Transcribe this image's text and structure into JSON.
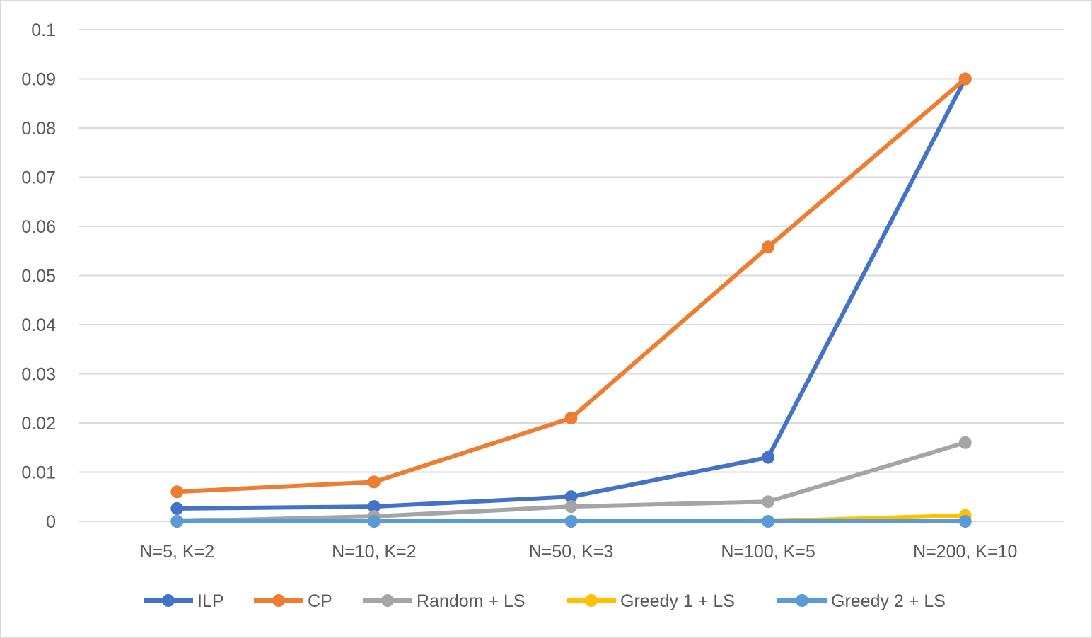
{
  "chart_data": {
    "type": "line",
    "title": "",
    "xlabel": "",
    "ylabel": "",
    "categories": [
      "N=5, K=2",
      "N=10, K=2",
      "N=50, K=3",
      "N=100, K=5",
      "N=200, K=10"
    ],
    "ylim": [
      0,
      0.1
    ],
    "yticks": [
      "0",
      "0.01",
      "0.02",
      "0.03",
      "0.04",
      "0.05",
      "0.06",
      "0.07",
      "0.08",
      "0.09",
      "0.1"
    ],
    "grid": true,
    "legend_position": "bottom",
    "series": [
      {
        "name": "ILP",
        "color": "#4472C4",
        "values": [
          0.0026,
          0.003,
          0.005,
          0.013,
          0.09
        ]
      },
      {
        "name": "CP",
        "color": "#ED7D31",
        "values": [
          0.006,
          0.008,
          0.021,
          0.0558,
          0.09
        ]
      },
      {
        "name": "Random + LS",
        "color": "#A5A5A5",
        "values": [
          0.0,
          0.001,
          0.003,
          0.004,
          0.016
        ]
      },
      {
        "name": "Greedy 1 + LS",
        "color": "#FFC000",
        "values": [
          0.0,
          0.0,
          0.0,
          0.0,
          0.0012
        ]
      },
      {
        "name": "Greedy 2 + LS",
        "color": "#5B9BD5",
        "values": [
          0.0,
          0.0,
          0.0,
          0.0,
          0.0
        ]
      }
    ]
  }
}
